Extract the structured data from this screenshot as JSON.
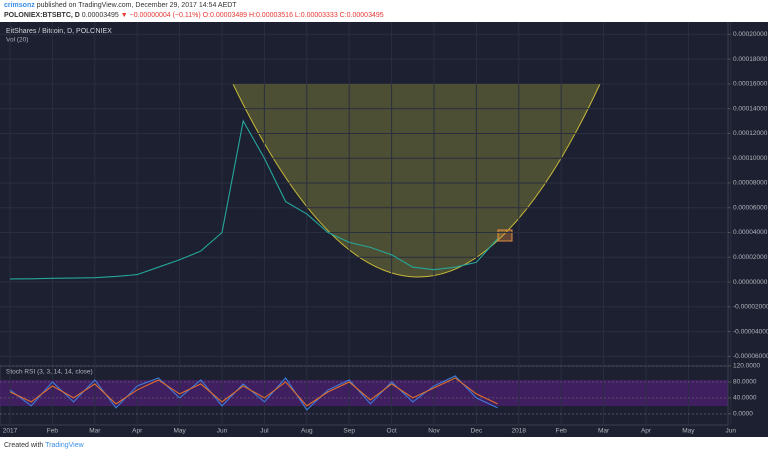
{
  "header": {
    "author": "crimsonz",
    "published": "published on TradingView.com, December 29, 2017 14:54 AEDT",
    "symbol": "POLONIEX:BTSBTC, D",
    "last": "0.00003495",
    "change": "▼ −0.00000004 (−0.11%)",
    "ohlc": "O:0.00003489 H:0.00003516 L:0.00003333 C:0.00003495"
  },
  "footer": {
    "created": "Created with",
    "brand": "TradingView"
  },
  "chart_data": [
    {
      "type": "line",
      "title": "BitShares / Bitcoin, D, POLONIEX",
      "subtitle": "Vol (20)",
      "categories": [
        "2017",
        null,
        "Feb",
        null,
        "Mar",
        null,
        "Apr",
        null,
        "May",
        null,
        "Jun",
        null,
        "Jul",
        null,
        "Aug",
        null,
        "Sep",
        null,
        "Oct",
        null,
        "Nov",
        null,
        "Dec",
        null,
        "2018",
        null,
        "Feb",
        null,
        "Mar",
        null,
        "Apr",
        null,
        "May",
        null,
        "Jun",
        null
      ],
      "series": [
        {
          "name": "BTSBTC",
          "color": "#26a69a",
          "values": [
            2.5e-06,
            2.6e-06,
            3e-06,
            3.2e-06,
            3.5e-06,
            4.5e-06,
            6e-06,
            1.2e-05,
            1.8e-05,
            2.5e-05,
            4e-05,
            0.00013,
            0.0001,
            6.5e-05,
            5.5e-05,
            4e-05,
            3.2e-05,
            2.8e-05,
            2.2e-05,
            1.2e-05,
            1e-05,
            1.2e-05,
            1.6e-05,
            3.5e-05,
            null,
            null,
            null,
            null,
            null,
            null,
            null,
            null,
            null,
            null,
            null,
            null
          ]
        }
      ],
      "ylim": [
        -6.7e-05,
        0.00021
      ],
      "yticks": [
        {
          "value": -6e-05,
          "label": "-0.00006000"
        },
        {
          "value": -4e-05,
          "label": "-0.00004000"
        },
        {
          "value": -2e-05,
          "label": "-0.00002000"
        },
        {
          "value": 0,
          "label": "0.00000000"
        },
        {
          "value": 2e-05,
          "label": "0.00002000"
        },
        {
          "value": 4e-05,
          "label": "0.00004000"
        },
        {
          "value": 6e-05,
          "label": "0.00006000"
        },
        {
          "value": 8e-05,
          "label": "0.00008000"
        },
        {
          "value": 0.0001,
          "label": "0.00010000"
        },
        {
          "value": 0.00012,
          "label": "0.00012000"
        },
        {
          "value": 0.00014,
          "label": "0.00014000"
        },
        {
          "value": 0.00016,
          "label": "0.00016000"
        },
        {
          "value": 0.00018,
          "label": "0.00018000"
        },
        {
          "value": 0.0002,
          "label": "0.00020000"
        }
      ],
      "grid": true
    },
    {
      "type": "line",
      "title": "Stoch RSI (3, 3, 14, 14, close)",
      "series": [
        {
          "name": "K",
          "color": "#3b7bd8",
          "values": [
            60,
            20,
            80,
            30,
            85,
            15,
            70,
            90,
            40,
            85,
            20,
            75,
            30,
            90,
            10,
            60,
            85,
            25,
            80,
            30,
            70,
            95,
            40,
            15,
            null,
            null,
            null,
            null,
            null,
            null,
            null,
            null,
            null,
            null,
            null,
            null
          ]
        },
        {
          "name": "D",
          "color": "#e0702a",
          "values": [
            55,
            30,
            70,
            40,
            75,
            25,
            60,
            85,
            50,
            75,
            30,
            70,
            40,
            80,
            20,
            55,
            80,
            35,
            75,
            40,
            65,
            90,
            50,
            25,
            null,
            null,
            null,
            null,
            null,
            null,
            null,
            null,
            null,
            null,
            null,
            null
          ]
        }
      ],
      "ylim": [
        -28,
        120
      ],
      "yticks": [
        {
          "value": 0,
          "label": "0.0000"
        },
        {
          "value": 40,
          "label": "40.0000"
        },
        {
          "value": 80,
          "label": "80.0000"
        },
        {
          "value": 120,
          "label": "120.0000"
        }
      ],
      "grid": true
    }
  ]
}
